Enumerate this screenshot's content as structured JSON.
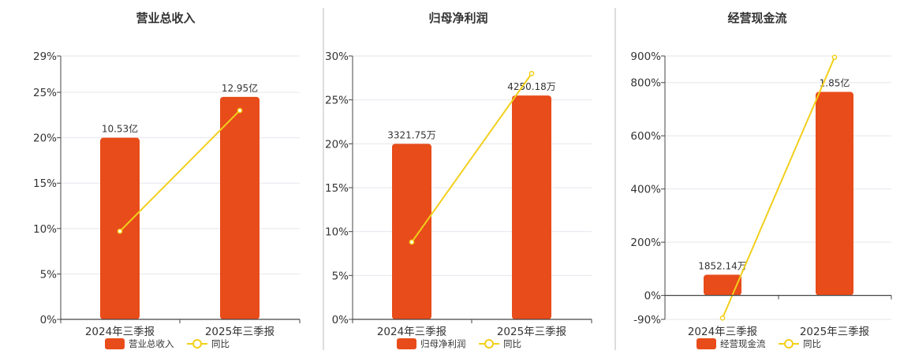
{
  "colors": {
    "bar": "#E84C1A",
    "line": "#F2CF1B",
    "grid": "#E6E6EE",
    "axis": "#444444",
    "divider": "#BBBBBB",
    "text": "#333333"
  },
  "chart_data": [
    {
      "type": "bar",
      "title": "营业总收入",
      "categories": [
        "2024年三季报",
        "2025年三季报"
      ],
      "y_ticks": [
        "0%",
        "5%",
        "10%",
        "15%",
        "20%",
        "25%",
        "29%"
      ],
      "ylim": [
        0,
        29
      ],
      "bar_heights": [
        20,
        24.5
      ],
      "bar_labels": [
        "10.53亿",
        "12.95亿"
      ],
      "line_values": [
        9.7,
        23.0
      ],
      "legend": [
        "营业总收入",
        "同比"
      ],
      "grid": true,
      "legend_position": "bottom"
    },
    {
      "type": "bar",
      "title": "归母净利润",
      "categories": [
        "2024年三季报",
        "2025年三季报"
      ],
      "y_ticks": [
        "0%",
        "5%",
        "10%",
        "15%",
        "20%",
        "25%",
        "30%"
      ],
      "ylim": [
        0,
        30
      ],
      "bar_heights": [
        20,
        25.5
      ],
      "bar_labels": [
        "3321.75万",
        "4250.18万"
      ],
      "line_values": [
        8.8,
        28.0
      ],
      "legend": [
        "归母净利润",
        "同比"
      ],
      "grid": true,
      "legend_position": "bottom"
    },
    {
      "type": "bar",
      "title": "经营现金流",
      "categories": [
        "2024年三季报",
        "2025年三季报"
      ],
      "y_ticks": [
        "-90%",
        "0%",
        "200%",
        "400%",
        "600%",
        "800%",
        "900%"
      ],
      "ylim": [
        -90,
        900
      ],
      "bar_heights": [
        78,
        765
      ],
      "bar_labels": [
        "1852.14万",
        "1.85亿"
      ],
      "line_values": [
        -85,
        895
      ],
      "legend": [
        "经营现金流",
        "同比"
      ],
      "grid": true,
      "legend_position": "bottom"
    }
  ]
}
